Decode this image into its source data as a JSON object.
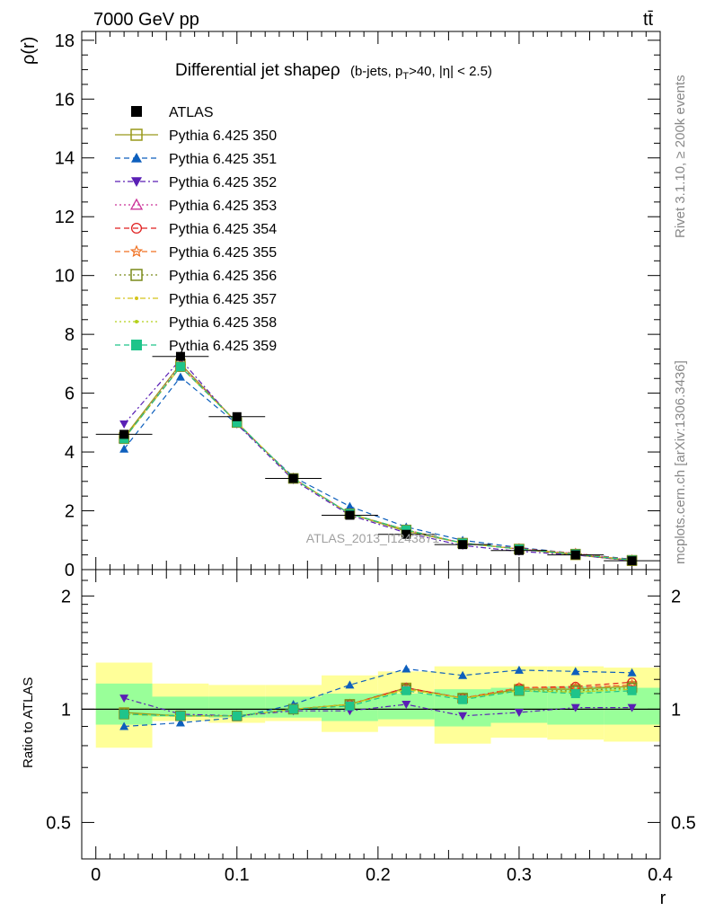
{
  "header": {
    "energy_label": "7000 GeV pp",
    "process_label": "tt̄"
  },
  "side_labels": {
    "rivet": "Rivet 3.1.10, ≥ 200k events",
    "mcplots": "mcplots.cern.ch [arXiv:1306.3436]"
  },
  "watermark": "ATLAS_2013_I1243871",
  "chart_data": [
    {
      "type": "line",
      "title": "Differential jet shapeρ",
      "title_cuts": "(b-jets, p_T>40, |η| < 2.5)",
      "xlabel": "r",
      "ylabel": "ρ(r)",
      "xlim": [
        -0.01,
        0.4
      ],
      "ylim": [
        0,
        18.3
      ],
      "y_ticks": [
        0,
        2,
        4,
        6,
        8,
        10,
        12,
        14,
        16,
        18
      ],
      "x": [
        0.02,
        0.06,
        0.1,
        0.14,
        0.18,
        0.22,
        0.26,
        0.3,
        0.34,
        0.38
      ],
      "data": {
        "name": "ATLAS",
        "color": "#000000",
        "values": [
          4.6,
          7.25,
          5.2,
          3.1,
          1.85,
          1.2,
          0.85,
          0.65,
          0.5,
          0.3
        ]
      },
      "series": [
        {
          "name": "Pythia 6.425 350",
          "color": "#99991a",
          "marker": "square-open",
          "dash": "solid",
          "values": [
            4.5,
            7.0,
            5.0,
            3.1,
            1.9,
            1.3,
            0.9,
            0.7,
            0.5,
            0.3
          ]
        },
        {
          "name": "Pythia 6.425 351",
          "color": "#0d5fbd",
          "marker": "triangle-up",
          "dash": "dashed",
          "values": [
            4.1,
            6.55,
            4.95,
            3.15,
            2.15,
            1.45,
            1.0,
            0.75,
            0.55,
            0.35
          ]
        },
        {
          "name": "Pythia 6.425 352",
          "color": "#5a1fb5",
          "marker": "triangle-down",
          "dash": "dashdot",
          "values": [
            4.95,
            7.15,
            4.95,
            3.05,
            1.85,
            1.25,
            0.82,
            0.62,
            0.5,
            0.3
          ]
        },
        {
          "name": "Pythia 6.425 353",
          "color": "#cc3399",
          "marker": "triangle-open",
          "dash": "dotted",
          "values": [
            4.45,
            6.95,
            5.0,
            3.1,
            1.9,
            1.35,
            0.9,
            0.7,
            0.55,
            0.32
          ]
        },
        {
          "name": "Pythia 6.425 354",
          "color": "#e01f1f",
          "marker": "circle-open",
          "dash": "dashed",
          "values": [
            4.45,
            6.9,
            5.0,
            3.1,
            1.9,
            1.35,
            0.9,
            0.72,
            0.55,
            0.33
          ]
        },
        {
          "name": "Pythia 6.425 355",
          "color": "#f07020",
          "marker": "star",
          "dash": "dashed",
          "values": [
            4.45,
            6.9,
            5.0,
            3.1,
            1.9,
            1.35,
            0.9,
            0.7,
            0.55,
            0.32
          ]
        },
        {
          "name": "Pythia 6.425 356",
          "color": "#7a8a1a",
          "marker": "square-open",
          "dash": "dotted",
          "values": [
            4.45,
            6.9,
            5.0,
            3.1,
            1.9,
            1.35,
            0.9,
            0.7,
            0.53,
            0.32
          ]
        },
        {
          "name": "Pythia 6.425 357",
          "color": "#d4c41a",
          "marker": "dot",
          "dash": "dashdot",
          "values": [
            4.45,
            6.9,
            5.0,
            3.1,
            1.9,
            1.35,
            0.9,
            0.7,
            0.53,
            0.32
          ]
        },
        {
          "name": "Pythia 6.425 358",
          "color": "#b5d11a",
          "marker": "dot",
          "dash": "dotted",
          "values": [
            4.45,
            6.9,
            5.0,
            3.1,
            1.9,
            1.35,
            0.9,
            0.7,
            0.53,
            0.32
          ]
        },
        {
          "name": "Pythia 6.425 359",
          "color": "#1fc48a",
          "marker": "square",
          "dash": "dashed",
          "values": [
            4.45,
            6.9,
            5.0,
            3.1,
            1.9,
            1.35,
            0.9,
            0.7,
            0.53,
            0.32
          ]
        }
      ]
    },
    {
      "type": "line",
      "title": "",
      "xlabel": "r",
      "ylabel": "Ratio to ATLAS",
      "xlim": [
        -0.01,
        0.4
      ],
      "ylim": [
        0.4,
        2.35
      ],
      "y_scale": "log",
      "y_ticks": [
        0.5,
        1,
        2
      ],
      "x_ticks": [
        0,
        0.1,
        0.2,
        0.3,
        0.4
      ],
      "bins": [
        [
          0.0,
          0.04
        ],
        [
          0.04,
          0.08
        ],
        [
          0.08,
          0.12
        ],
        [
          0.12,
          0.16
        ],
        [
          0.16,
          0.2
        ],
        [
          0.2,
          0.24
        ],
        [
          0.24,
          0.28
        ],
        [
          0.28,
          0.32
        ],
        [
          0.32,
          0.36
        ],
        [
          0.36,
          0.4
        ]
      ],
      "band_stat": {
        "color": "#99ff99",
        "lo": [
          0.91,
          0.955,
          0.95,
          0.95,
          0.93,
          0.94,
          0.9,
          0.92,
          0.91,
          0.91
        ],
        "hi": [
          1.17,
          1.08,
          1.08,
          1.08,
          1.1,
          1.1,
          1.13,
          1.14,
          1.15,
          1.14
        ]
      },
      "band_total": {
        "color": "#ffff99",
        "lo": [
          0.79,
          0.93,
          0.92,
          0.93,
          0.87,
          0.9,
          0.81,
          0.84,
          0.83,
          0.82
        ],
        "hi": [
          1.33,
          1.17,
          1.16,
          1.16,
          1.23,
          1.26,
          1.3,
          1.3,
          1.3,
          1.29
        ]
      },
      "reference_line": 1,
      "x": [
        0.02,
        0.06,
        0.1,
        0.14,
        0.18,
        0.22,
        0.26,
        0.3,
        0.34,
        0.38
      ],
      "series": [
        {
          "name": "Pythia 6.425 350",
          "values": [
            0.98,
            0.96,
            0.96,
            1.0,
            1.03,
            1.14,
            1.07,
            1.13,
            1.13,
            1.15
          ]
        },
        {
          "name": "Pythia 6.425 351",
          "values": [
            0.9,
            0.92,
            0.95,
            1.03,
            1.16,
            1.28,
            1.23,
            1.27,
            1.26,
            1.25
          ]
        },
        {
          "name": "Pythia 6.425 352",
          "values": [
            1.07,
            0.97,
            0.96,
            0.99,
            0.99,
            1.03,
            0.96,
            0.98,
            1.01,
            1.01
          ]
        },
        {
          "name": "Pythia 6.425 353",
          "values": [
            0.97,
            0.96,
            0.96,
            1.0,
            1.03,
            1.14,
            1.07,
            1.14,
            1.14,
            1.16
          ]
        },
        {
          "name": "Pythia 6.425 354",
          "values": [
            0.97,
            0.96,
            0.96,
            1.0,
            1.03,
            1.14,
            1.07,
            1.14,
            1.15,
            1.18
          ]
        },
        {
          "name": "Pythia 6.425 355",
          "values": [
            0.97,
            0.96,
            0.96,
            1.0,
            1.03,
            1.13,
            1.07,
            1.14,
            1.14,
            1.16
          ]
        },
        {
          "name": "Pythia 6.425 356",
          "values": [
            0.97,
            0.96,
            0.96,
            1.0,
            1.03,
            1.13,
            1.07,
            1.12,
            1.12,
            1.14
          ]
        },
        {
          "name": "Pythia 6.425 357",
          "values": [
            0.97,
            0.96,
            0.96,
            1.0,
            1.03,
            1.13,
            1.07,
            1.12,
            1.11,
            1.13
          ]
        },
        {
          "name": "Pythia 6.425 358",
          "values": [
            0.97,
            0.96,
            0.96,
            1.0,
            1.03,
            1.13,
            1.07,
            1.12,
            1.11,
            1.13
          ]
        },
        {
          "name": "Pythia 6.425 359",
          "values": [
            0.97,
            0.96,
            0.96,
            1.0,
            1.02,
            1.12,
            1.06,
            1.12,
            1.1,
            1.12
          ]
        }
      ]
    }
  ]
}
